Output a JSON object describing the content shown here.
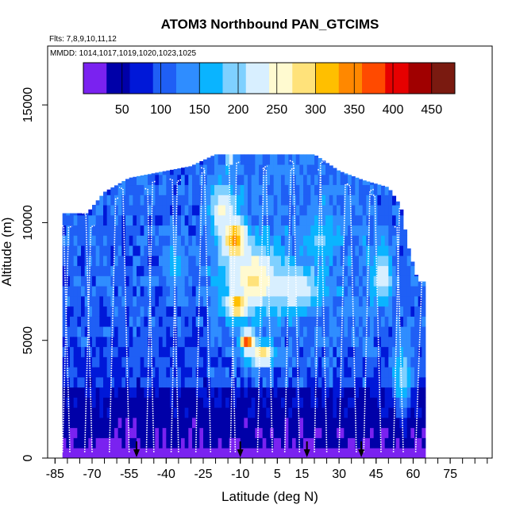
{
  "chart_data": {
    "type": "heatmap",
    "title": "ATOM3 Northbound PAN_GTCIMS",
    "flights_note": "Flts: 7,8,9,10,11,12",
    "dates_note": "MMDD: 1014,1017,1019,1020,1023,1025",
    "xlabel": "Latitude (deg N)",
    "ylabel": "Altitude (m)",
    "xlim": [
      -88,
      92
    ],
    "ylim": [
      0,
      17500
    ],
    "x_ticks": [
      "-85",
      "-70",
      "-55",
      "-40",
      "-25",
      "-10",
      "5",
      "15",
      "30",
      "45",
      "60",
      "75"
    ],
    "x_tick_values": [
      -85,
      -70,
      -55,
      -40,
      -25,
      -10,
      5,
      15,
      30,
      45,
      60,
      75
    ],
    "y_ticks": [
      "0",
      "5000",
      "10000",
      "15000"
    ],
    "y_tick_values": [
      0,
      5000,
      10000,
      15000
    ],
    "colorbar": {
      "range": [
        0,
        480
      ],
      "tick_labels": [
        "50",
        "100",
        "150",
        "200",
        "250",
        "300",
        "350",
        "400",
        "450"
      ],
      "tick_values": [
        50,
        100,
        150,
        200,
        250,
        300,
        350,
        400,
        450
      ],
      "colors": [
        "#7a22f0",
        "#0000a8",
        "#0018d8",
        "#1f5ff5",
        "#2f8dff",
        "#0ab4ff",
        "#7fd0ff",
        "#d8efff",
        "#fffad0",
        "#ffe27a",
        "#ffbf00",
        "#ff8800",
        "#ff4a00",
        "#e60000",
        "#a00000",
        "#7a1a10"
      ]
    },
    "domain": {
      "lat_min": -82,
      "lat_max": 65,
      "alt_min": 0,
      "alt_max": 13000
    },
    "top_profile": [
      [
        -82,
        10400
      ],
      [
        -72,
        10400
      ],
      [
        -65,
        11300
      ],
      [
        -60,
        11600
      ],
      [
        -55,
        11900
      ],
      [
        -45,
        12100
      ],
      [
        -30,
        12400
      ],
      [
        -20,
        12900
      ],
      [
        5,
        12900
      ],
      [
        20,
        12900
      ],
      [
        30,
        12200
      ],
      [
        40,
        11800
      ],
      [
        50,
        11500
      ],
      [
        55,
        10700
      ],
      [
        58,
        9000
      ],
      [
        62,
        7500
      ],
      [
        65,
        7500
      ]
    ],
    "enhancements": [
      {
        "lat": -13,
        "alt": 9300,
        "peak": 340,
        "w": 4.5,
        "h": 900
      },
      {
        "lat": -12,
        "alt": 6500,
        "peak": 370,
        "w": 4,
        "h": 400
      },
      {
        "lat": -8,
        "alt": 5000,
        "peak": 390,
        "w": 3,
        "h": 450
      },
      {
        "lat": -2,
        "alt": 4400,
        "peak": 300,
        "w": 5,
        "h": 500
      },
      {
        "lat": -5,
        "alt": 7600,
        "peak": 275,
        "w": 12,
        "h": 1400
      },
      {
        "lat": -18,
        "alt": 10500,
        "peak": 250,
        "w": 5,
        "h": 1200
      },
      {
        "lat": 12,
        "alt": 7200,
        "peak": 240,
        "w": 10,
        "h": 900
      },
      {
        "lat": 47,
        "alt": 7800,
        "peak": 230,
        "w": 4,
        "h": 1300
      },
      {
        "lat": 55,
        "alt": 3500,
        "peak": 200,
        "w": 4,
        "h": 1500
      },
      {
        "lat": -15,
        "alt": 13000,
        "peak": 350,
        "w": 1.5,
        "h": 400
      },
      {
        "lat": -37,
        "alt": 8200,
        "peak": 170,
        "w": 5,
        "h": 1000
      },
      {
        "lat": 22,
        "alt": 9300,
        "peak": 190,
        "w": 6,
        "h": 900
      }
    ],
    "flight_profile_lats": [
      -82,
      -79,
      -73,
      -70,
      -63,
      -55,
      -48,
      -45,
      -38,
      -35,
      -28,
      -22,
      -14,
      -12,
      -3,
      3,
      8,
      14,
      20,
      25,
      30,
      37,
      40,
      47,
      52,
      56,
      61
    ],
    "arrow_lats": [
      -52,
      -10,
      17,
      39
    ]
  }
}
